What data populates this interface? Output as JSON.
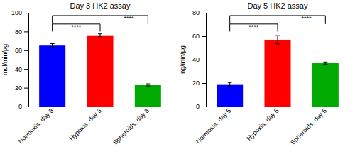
{
  "chart_data": [
    {
      "type": "bar",
      "title": "Day 3 HK2 assay",
      "ylabel": "mol/min/µg",
      "categories": [
        "Normoxia, day 3",
        "Hypoxia, day 3",
        "Spheroids, day 3"
      ],
      "values": [
        65,
        76,
        23
      ],
      "errors": [
        2.0,
        1.5,
        1.2
      ],
      "colors": [
        "#0000ff",
        "#ff0000",
        "#00aa00"
      ],
      "ylim": [
        0,
        100
      ],
      "yticks": [
        0,
        20,
        40,
        60,
        80,
        100
      ],
      "annotations": [
        "****",
        "****"
      ],
      "grid": false
    },
    {
      "type": "bar",
      "title": "Day 5 HK2 assay",
      "ylabel": "ng/min/µg",
      "categories": [
        "Normoxia, day 5",
        "Hypoxia, day 5",
        "Spheroids, day 5"
      ],
      "values": [
        19,
        57,
        37
      ],
      "errors": [
        1.5,
        3.5,
        1.0
      ],
      "colors": [
        "#0000ff",
        "#ff0000",
        "#00aa00"
      ],
      "ylim": [
        0,
        80
      ],
      "yticks": [
        0,
        20,
        40,
        60,
        80
      ],
      "annotations": [
        "****",
        "****"
      ],
      "grid": false
    }
  ]
}
